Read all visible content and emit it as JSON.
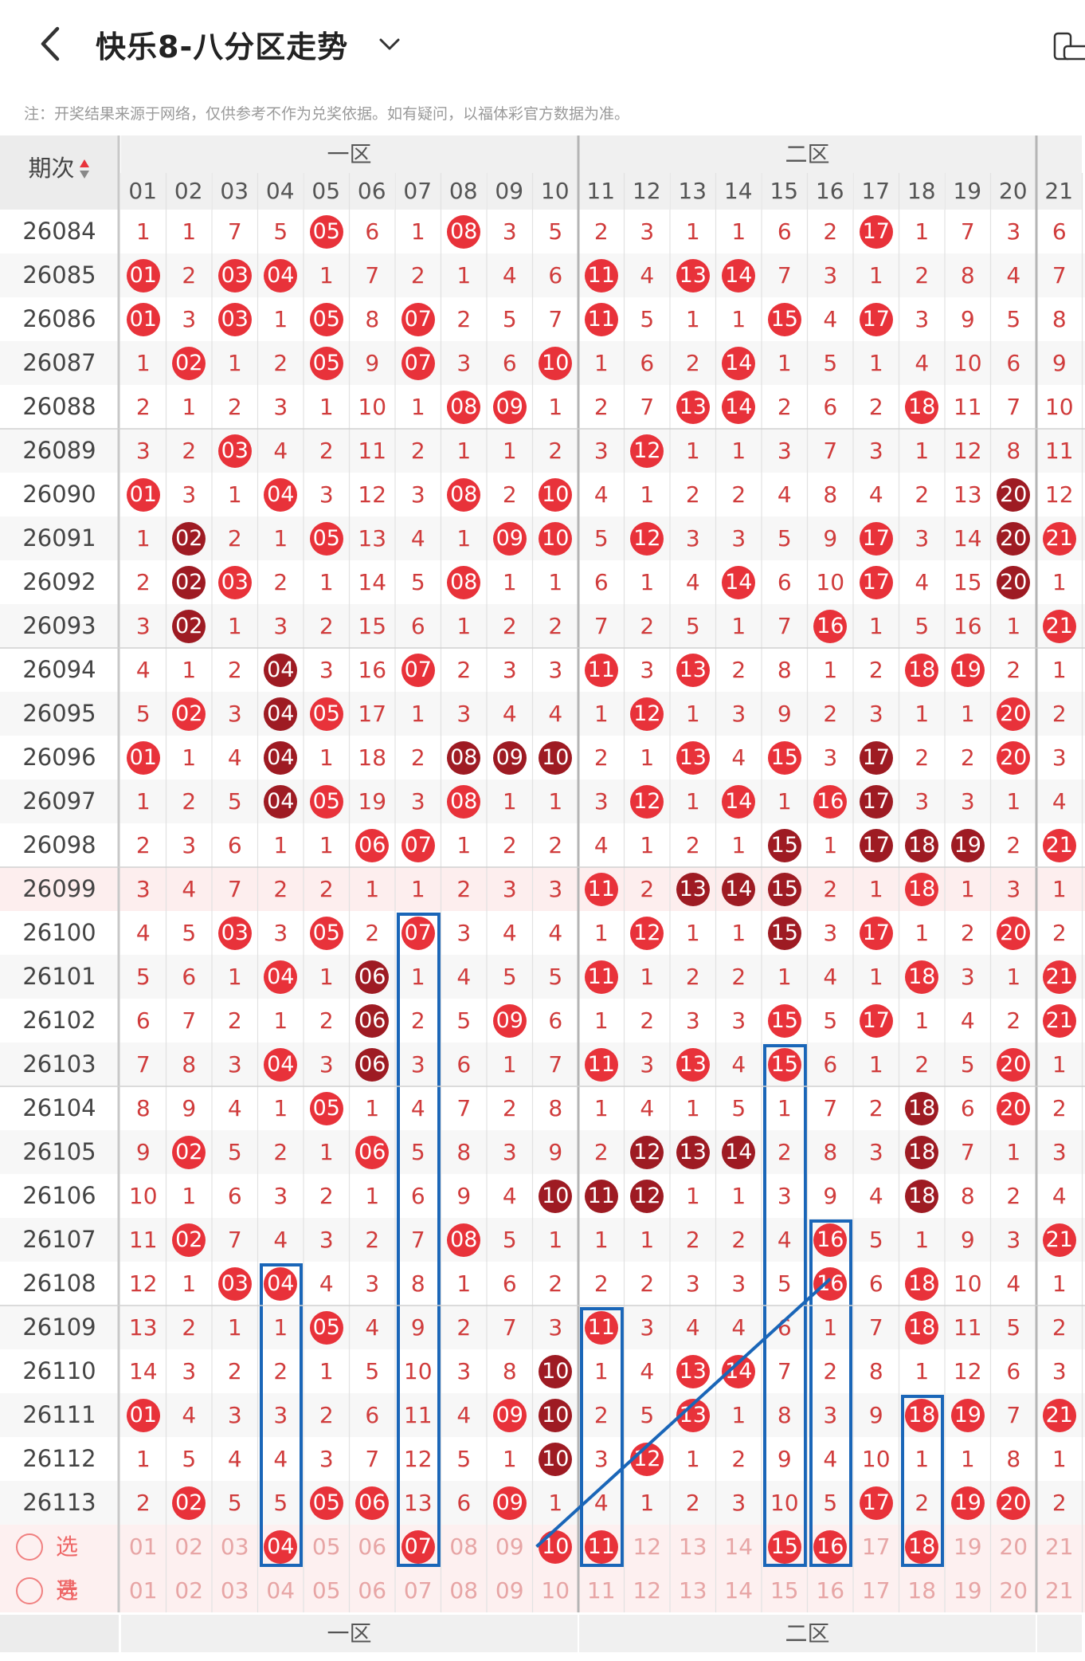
{
  "header": {
    "title": "快乐8-八分区走势",
    "back_icon": "back-arrow-icon",
    "dropdown_icon": "chevron-down-icon",
    "mode_icon": "screen-rotate-icon"
  },
  "note": "注：开奖结果来源于网络，仅供参考不作为兑奖依据。如有疑问，以福体彩官方数据为准。",
  "table": {
    "period_header": "期次",
    "zones": [
      "一区",
      "二区"
    ],
    "columns": [
      "01",
      "02",
      "03",
      "04",
      "05",
      "06",
      "07",
      "08",
      "09",
      "10",
      "11",
      "12",
      "13",
      "14",
      "15",
      "16",
      "17",
      "18",
      "19",
      "20",
      "21"
    ],
    "rows": [
      {
        "issue": "26084",
        "cells": [
          "1",
          "1",
          "7",
          "5",
          "05",
          "6",
          "1",
          "08",
          "3",
          "5",
          "2",
          "3",
          "1",
          "1",
          "6",
          "2",
          "17",
          "1",
          "7",
          "3",
          "6"
        ],
        "hits": [
          4,
          7,
          16
        ],
        "dark": []
      },
      {
        "issue": "26085",
        "cells": [
          "01",
          "2",
          "03",
          "04",
          "1",
          "7",
          "2",
          "1",
          "4",
          "6",
          "11",
          "4",
          "13",
          "14",
          "7",
          "3",
          "1",
          "2",
          "8",
          "4",
          "7"
        ],
        "hits": [
          0,
          2,
          3,
          10,
          12,
          13
        ],
        "dark": []
      },
      {
        "issue": "26086",
        "cells": [
          "01",
          "3",
          "03",
          "1",
          "05",
          "8",
          "07",
          "2",
          "5",
          "7",
          "11",
          "5",
          "1",
          "1",
          "15",
          "4",
          "17",
          "3",
          "9",
          "5",
          "8"
        ],
        "hits": [
          0,
          2,
          4,
          6,
          10,
          14,
          16
        ],
        "dark": []
      },
      {
        "issue": "26087",
        "cells": [
          "1",
          "02",
          "1",
          "2",
          "05",
          "9",
          "07",
          "3",
          "6",
          "10",
          "1",
          "6",
          "2",
          "14",
          "1",
          "5",
          "1",
          "4",
          "10",
          "6",
          "9"
        ],
        "hits": [
          1,
          4,
          6,
          9,
          13
        ],
        "dark": []
      },
      {
        "issue": "26088",
        "cells": [
          "2",
          "1",
          "2",
          "3",
          "1",
          "10",
          "1",
          "08",
          "09",
          "1",
          "2",
          "7",
          "13",
          "14",
          "2",
          "6",
          "2",
          "18",
          "11",
          "7",
          "10"
        ],
        "hits": [
          7,
          8,
          12,
          13,
          17
        ],
        "dark": []
      },
      {
        "issue": "26089",
        "cells": [
          "3",
          "2",
          "03",
          "4",
          "2",
          "11",
          "2",
          "1",
          "1",
          "2",
          "3",
          "12",
          "1",
          "1",
          "3",
          "7",
          "3",
          "1",
          "12",
          "8",
          "11"
        ],
        "hits": [
          2,
          11
        ],
        "dark": []
      },
      {
        "issue": "26090",
        "cells": [
          "01",
          "3",
          "1",
          "04",
          "3",
          "12",
          "3",
          "08",
          "2",
          "10",
          "4",
          "1",
          "2",
          "2",
          "4",
          "8",
          "4",
          "2",
          "13",
          "20",
          "12"
        ],
        "hits": [
          0,
          3,
          7,
          9,
          19
        ],
        "dark": [
          19
        ]
      },
      {
        "issue": "26091",
        "cells": [
          "1",
          "02",
          "2",
          "1",
          "05",
          "13",
          "4",
          "1",
          "09",
          "10",
          "5",
          "12",
          "3",
          "3",
          "5",
          "9",
          "17",
          "3",
          "14",
          "20",
          "21"
        ],
        "hits": [
          1,
          4,
          8,
          9,
          11,
          16,
          19,
          20
        ],
        "dark": [
          1,
          19
        ]
      },
      {
        "issue": "26092",
        "cells": [
          "2",
          "02",
          "03",
          "2",
          "1",
          "14",
          "5",
          "08",
          "1",
          "1",
          "6",
          "1",
          "4",
          "14",
          "6",
          "10",
          "17",
          "4",
          "15",
          "20",
          "1"
        ],
        "hits": [
          1,
          2,
          7,
          13,
          16,
          19
        ],
        "dark": [
          1,
          19
        ]
      },
      {
        "issue": "26093",
        "cells": [
          "3",
          "02",
          "1",
          "3",
          "2",
          "15",
          "6",
          "1",
          "2",
          "2",
          "7",
          "2",
          "5",
          "1",
          "7",
          "16",
          "1",
          "5",
          "16",
          "1",
          "21"
        ],
        "hits": [
          1,
          15,
          20
        ],
        "dark": [
          1
        ]
      },
      {
        "issue": "26094",
        "cells": [
          "4",
          "1",
          "2",
          "04",
          "3",
          "16",
          "07",
          "2",
          "3",
          "3",
          "11",
          "3",
          "13",
          "2",
          "8",
          "1",
          "2",
          "18",
          "19",
          "2",
          "1"
        ],
        "hits": [
          3,
          6,
          10,
          12,
          17,
          18
        ],
        "dark": [
          3
        ]
      },
      {
        "issue": "26095",
        "cells": [
          "5",
          "02",
          "3",
          "04",
          "05",
          "17",
          "1",
          "3",
          "4",
          "4",
          "1",
          "12",
          "1",
          "3",
          "9",
          "2",
          "3",
          "1",
          "1",
          "20",
          "2"
        ],
        "hits": [
          1,
          3,
          4,
          11,
          19
        ],
        "dark": [
          3
        ]
      },
      {
        "issue": "26096",
        "cells": [
          "01",
          "1",
          "4",
          "04",
          "1",
          "18",
          "2",
          "08",
          "09",
          "10",
          "2",
          "1",
          "13",
          "4",
          "15",
          "3",
          "17",
          "2",
          "2",
          "20",
          "3"
        ],
        "hits": [
          0,
          3,
          7,
          8,
          9,
          12,
          14,
          16,
          19
        ],
        "dark": [
          3,
          7,
          8,
          9,
          16
        ]
      },
      {
        "issue": "26097",
        "cells": [
          "1",
          "2",
          "5",
          "04",
          "05",
          "19",
          "3",
          "08",
          "1",
          "1",
          "3",
          "12",
          "1",
          "14",
          "1",
          "16",
          "17",
          "3",
          "3",
          "1",
          "4"
        ],
        "hits": [
          3,
          4,
          7,
          11,
          13,
          15,
          16
        ],
        "dark": [
          3,
          16
        ]
      },
      {
        "issue": "26098",
        "cells": [
          "2",
          "3",
          "6",
          "1",
          "1",
          "06",
          "07",
          "1",
          "2",
          "2",
          "4",
          "1",
          "2",
          "1",
          "15",
          "1",
          "17",
          "18",
          "19",
          "2",
          "21"
        ],
        "hits": [
          5,
          6,
          14,
          16,
          17,
          18,
          20
        ],
        "dark": [
          14,
          16,
          17,
          18
        ]
      },
      {
        "issue": "26099",
        "cells": [
          "3",
          "4",
          "7",
          "2",
          "2",
          "1",
          "1",
          "2",
          "3",
          "3",
          "11",
          "2",
          "13",
          "14",
          "15",
          "2",
          "1",
          "18",
          "1",
          "3",
          "1"
        ],
        "hits": [
          10,
          12,
          13,
          14,
          17
        ],
        "dark": [
          12,
          13,
          14
        ]
      },
      {
        "issue": "26100",
        "cells": [
          "4",
          "5",
          "03",
          "3",
          "05",
          "2",
          "07",
          "3",
          "4",
          "4",
          "1",
          "12",
          "1",
          "1",
          "15",
          "3",
          "17",
          "1",
          "2",
          "20",
          "2"
        ],
        "hits": [
          2,
          4,
          6,
          11,
          14,
          16,
          19
        ],
        "dark": [
          14
        ]
      },
      {
        "issue": "26101",
        "cells": [
          "5",
          "6",
          "1",
          "04",
          "1",
          "06",
          "1",
          "4",
          "5",
          "5",
          "11",
          "1",
          "2",
          "2",
          "1",
          "4",
          "1",
          "18",
          "3",
          "1",
          "21"
        ],
        "hits": [
          3,
          5,
          10,
          17,
          20
        ],
        "dark": [
          5
        ]
      },
      {
        "issue": "26102",
        "cells": [
          "6",
          "7",
          "2",
          "1",
          "2",
          "06",
          "2",
          "5",
          "09",
          "6",
          "1",
          "2",
          "3",
          "3",
          "15",
          "5",
          "17",
          "1",
          "4",
          "2",
          "21"
        ],
        "hits": [
          5,
          8,
          14,
          16,
          20
        ],
        "dark": [
          5
        ]
      },
      {
        "issue": "26103",
        "cells": [
          "7",
          "8",
          "3",
          "04",
          "3",
          "06",
          "3",
          "6",
          "1",
          "7",
          "11",
          "3",
          "13",
          "4",
          "15",
          "6",
          "1",
          "2",
          "5",
          "20",
          "1"
        ],
        "hits": [
          3,
          5,
          10,
          12,
          14,
          19
        ],
        "dark": [
          5
        ]
      },
      {
        "issue": "26104",
        "cells": [
          "8",
          "9",
          "4",
          "1",
          "05",
          "1",
          "4",
          "7",
          "2",
          "8",
          "1",
          "4",
          "1",
          "5",
          "1",
          "7",
          "2",
          "18",
          "6",
          "20",
          "2"
        ],
        "hits": [
          4,
          17,
          19
        ],
        "dark": [
          17
        ]
      },
      {
        "issue": "26105",
        "cells": [
          "9",
          "02",
          "5",
          "2",
          "1",
          "06",
          "5",
          "8",
          "3",
          "9",
          "2",
          "12",
          "13",
          "14",
          "2",
          "8",
          "3",
          "18",
          "7",
          "1",
          "3"
        ],
        "hits": [
          1,
          5,
          11,
          12,
          13,
          17
        ],
        "dark": [
          11,
          12,
          13,
          17
        ]
      },
      {
        "issue": "26106",
        "cells": [
          "10",
          "1",
          "6",
          "3",
          "2",
          "1",
          "6",
          "9",
          "4",
          "10",
          "11",
          "12",
          "1",
          "1",
          "3",
          "9",
          "4",
          "18",
          "8",
          "2",
          "4"
        ],
        "hits": [
          9,
          10,
          11,
          17
        ],
        "dark": [
          9,
          10,
          11,
          17
        ]
      },
      {
        "issue": "26107",
        "cells": [
          "11",
          "02",
          "7",
          "4",
          "3",
          "2",
          "7",
          "08",
          "5",
          "1",
          "1",
          "1",
          "2",
          "2",
          "4",
          "16",
          "5",
          "1",
          "9",
          "3",
          "21"
        ],
        "hits": [
          1,
          7,
          15,
          20
        ],
        "dark": []
      },
      {
        "issue": "26108",
        "cells": [
          "12",
          "1",
          "03",
          "04",
          "4",
          "3",
          "8",
          "1",
          "6",
          "2",
          "2",
          "2",
          "3",
          "3",
          "5",
          "16",
          "6",
          "18",
          "10",
          "4",
          "1"
        ],
        "hits": [
          2,
          3,
          15,
          17
        ],
        "dark": []
      },
      {
        "issue": "26109",
        "cells": [
          "13",
          "2",
          "1",
          "1",
          "05",
          "4",
          "9",
          "2",
          "7",
          "3",
          "11",
          "3",
          "4",
          "4",
          "6",
          "1",
          "7",
          "18",
          "11",
          "5",
          "2"
        ],
        "hits": [
          4,
          10,
          17
        ],
        "dark": []
      },
      {
        "issue": "26110",
        "cells": [
          "14",
          "3",
          "2",
          "2",
          "1",
          "5",
          "10",
          "3",
          "8",
          "10",
          "1",
          "4",
          "13",
          "14",
          "7",
          "2",
          "8",
          "1",
          "12",
          "6",
          "3"
        ],
        "hits": [
          9,
          12,
          13
        ],
        "dark": [
          9
        ]
      },
      {
        "issue": "26111",
        "cells": [
          "01",
          "4",
          "3",
          "3",
          "2",
          "6",
          "11",
          "4",
          "09",
          "10",
          "2",
          "5",
          "13",
          "1",
          "8",
          "3",
          "9",
          "18",
          "19",
          "7",
          "21"
        ],
        "hits": [
          0,
          8,
          9,
          12,
          17,
          18,
          20
        ],
        "dark": [
          9
        ]
      },
      {
        "issue": "26112",
        "cells": [
          "1",
          "5",
          "4",
          "4",
          "3",
          "7",
          "12",
          "5",
          "1",
          "10",
          "3",
          "12",
          "1",
          "2",
          "9",
          "4",
          "10",
          "1",
          "1",
          "8",
          "1"
        ],
        "hits": [
          9,
          11
        ],
        "dark": [
          9
        ]
      },
      {
        "issue": "26113",
        "cells": [
          "2",
          "02",
          "5",
          "5",
          "05",
          "06",
          "13",
          "6",
          "09",
          "1",
          "4",
          "1",
          "2",
          "3",
          "10",
          "5",
          "17",
          "2",
          "19",
          "20",
          "2"
        ],
        "hits": [
          1,
          4,
          5,
          8,
          16,
          18,
          19
        ],
        "dark": []
      }
    ],
    "select_rows": [
      {
        "label": "选号",
        "selected": [
          3,
          6,
          9,
          10,
          14,
          15,
          17
        ]
      },
      {
        "label": "选号",
        "selected": []
      }
    ]
  },
  "colors": {
    "ball_red": "#e8323a",
    "ball_dark": "#9e1b23",
    "cell_text": "#d03c3c",
    "highlight_box": "#1a66b8"
  }
}
